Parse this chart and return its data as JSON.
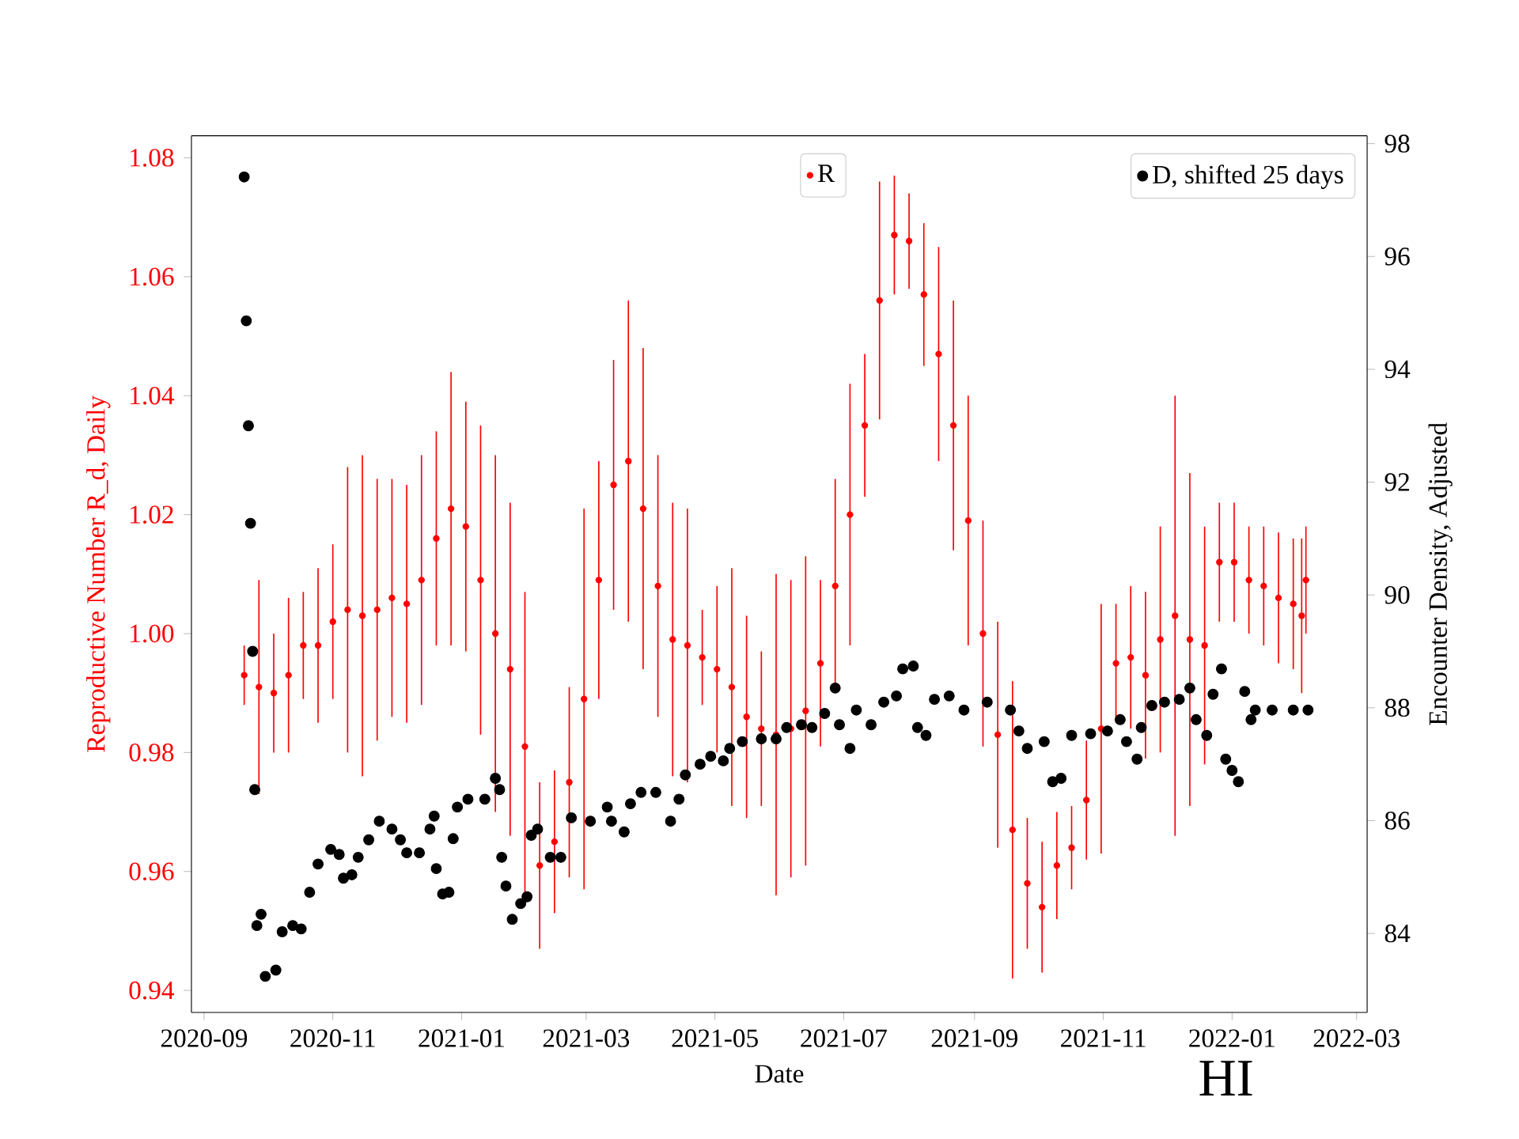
{
  "chart_data": {
    "type": "scatter",
    "xlabel": "Date",
    "ylabel": "Reproductive Number R_d, Daily",
    "y2label": "Encounter Density, Adjusted",
    "xlim": [
      "2020-08-26",
      "2022-03-06"
    ],
    "xticks": [
      "2020-09",
      "2020-11",
      "2021-01",
      "2021-03",
      "2021-05",
      "2021-07",
      "2021-09",
      "2021-11",
      "2022-01",
      "2022-03"
    ],
    "ylim": [
      0.9363,
      1.0837
    ],
    "yticks": [
      0.94,
      0.96,
      0.98,
      {
        "value": 1.0,
        "label": "1.00"
      },
      1.02,
      1.04,
      1.06,
      1.08
    ],
    "y2lim": [
      82.6,
      98.14
    ],
    "y2ticks": [
      84,
      86,
      88,
      90,
      92,
      94,
      96,
      98
    ],
    "marker": "circle",
    "legend": "top right",
    "annotations": [
      "HI"
    ],
    "series": [
      {
        "name": "R",
        "color": "#ff0000",
        "x": [
          "2020-09-20",
          "2020-09-27",
          "2020-10-04",
          "2020-10-11",
          "2020-10-18",
          "2020-10-25",
          "2020-11-01",
          "2020-11-08",
          "2020-11-15",
          "2020-11-22",
          "2020-11-29",
          "2020-12-06",
          "2020-12-13",
          "2020-12-20",
          "2020-12-27",
          "2021-01-03",
          "2021-01-10",
          "2021-01-17",
          "2021-01-24",
          "2021-01-31",
          "2021-02-07",
          "2021-02-14",
          "2021-02-21",
          "2021-02-28",
          "2021-03-07",
          "2021-03-14",
          "2021-03-21",
          "2021-03-28",
          "2021-04-04",
          "2021-04-11",
          "2021-04-18",
          "2021-04-25",
          "2021-05-02",
          "2021-05-09",
          "2021-05-16",
          "2021-05-23",
          "2021-05-30",
          "2021-06-06",
          "2021-06-13",
          "2021-06-20",
          "2021-06-27",
          "2021-07-04",
          "2021-07-11",
          "2021-07-18",
          "2021-07-25",
          "2021-08-01",
          "2021-08-08",
          "2021-08-15",
          "2021-08-22",
          "2021-08-29",
          "2021-09-05",
          "2021-09-12",
          "2021-09-19",
          "2021-09-26",
          "2021-10-03",
          "2021-10-10",
          "2021-10-17",
          "2021-10-24",
          "2021-10-31",
          "2021-11-07",
          "2021-11-14",
          "2021-11-21",
          "2021-11-28",
          "2021-12-05",
          "2021-12-12",
          "2021-12-19",
          "2021-12-26",
          "2022-01-02",
          "2022-01-09",
          "2022-01-16",
          "2022-01-23",
          "2022-01-30",
          "2022-02-03",
          "2022-02-05"
        ],
        "values": [
          0.993,
          0.991,
          0.99,
          0.993,
          0.998,
          0.998,
          1.002,
          1.004,
          1.003,
          1.004,
          1.006,
          1.005,
          1.009,
          1.016,
          1.021,
          1.018,
          1.009,
          1.0,
          0.994,
          0.981,
          0.961,
          0.965,
          0.975,
          0.989,
          1.009,
          1.025,
          1.029,
          1.021,
          1.008,
          0.999,
          0.998,
          0.996,
          0.994,
          0.991,
          0.986,
          0.984,
          0.983,
          0.984,
          0.987,
          0.995,
          1.008,
          1.02,
          1.035,
          1.056,
          1.067,
          1.066,
          1.057,
          1.047,
          1.035,
          1.019,
          1.0,
          0.983,
          0.967,
          0.958,
          0.954,
          0.961,
          0.964,
          0.972,
          0.984,
          0.995,
          0.996,
          0.993,
          0.999,
          1.003,
          0.999,
          0.998,
          1.012,
          1.012,
          1.009,
          1.008,
          1.006,
          1.005,
          1.003,
          1.009
        ],
        "errors": [
          0.005,
          0.018,
          0.01,
          0.013,
          0.009,
          0.013,
          0.013,
          0.024,
          0.027,
          0.022,
          0.02,
          0.02,
          0.021,
          0.018,
          0.023,
          0.021,
          0.026,
          0.03,
          0.028,
          0.026,
          0.014,
          0.012,
          0.016,
          0.032,
          0.02,
          0.021,
          0.027,
          0.027,
          0.022,
          0.023,
          0.023,
          0.008,
          0.014,
          0.02,
          0.017,
          0.013,
          0.027,
          0.025,
          0.026,
          0.014,
          0.018,
          0.022,
          0.012,
          0.02,
          0.01,
          0.008,
          0.012,
          0.018,
          0.021,
          0.021,
          0.019,
          0.019,
          0.025,
          0.011,
          0.011,
          0.009,
          0.007,
          0.01,
          0.021,
          0.01,
          0.012,
          0.014,
          0.019,
          0.037,
          0.028,
          0.02,
          0.01,
          0.01,
          0.009,
          0.01,
          0.011,
          0.011,
          0.013,
          0.009
        ]
      },
      {
        "name": "D, shifted 25 days",
        "color": "#000000",
        "axis": "y2",
        "x": [
          "2020-09-20",
          "2020-09-21",
          "2020-09-22",
          "2020-09-23",
          "2020-09-24",
          "2020-09-25",
          "2020-09-26",
          "2020-09-28",
          "2020-09-30",
          "2020-10-05",
          "2020-10-08",
          "2020-10-13",
          "2020-10-17",
          "2020-10-21",
          "2020-10-25",
          "2020-10-31",
          "2020-11-04",
          "2020-11-06",
          "2020-11-10",
          "2020-11-13",
          "2020-11-18",
          "2020-11-23",
          "2020-11-29",
          "2020-12-03",
          "2020-12-06",
          "2020-12-12",
          "2020-12-17",
          "2020-12-19",
          "2020-12-20",
          "2020-12-23",
          "2020-12-26",
          "2020-12-28",
          "2020-12-30",
          "2021-01-04",
          "2021-01-12",
          "2021-01-17",
          "2021-01-19",
          "2021-01-20",
          "2021-01-22",
          "2021-01-25",
          "2021-01-29",
          "2021-02-01",
          "2021-02-03",
          "2021-02-06",
          "2021-02-12",
          "2021-02-17",
          "2021-02-22",
          "2021-03-03",
          "2021-03-11",
          "2021-03-13",
          "2021-03-19",
          "2021-03-22",
          "2021-03-27",
          "2021-04-03",
          "2021-04-10",
          "2021-04-14",
          "2021-04-17",
          "2021-04-24",
          "2021-04-29",
          "2021-05-05",
          "2021-05-08",
          "2021-05-14",
          "2021-05-23",
          "2021-05-30",
          "2021-06-04",
          "2021-06-11",
          "2021-06-16",
          "2021-06-22",
          "2021-06-27",
          "2021-06-29",
          "2021-07-04",
          "2021-07-07",
          "2021-07-14",
          "2021-07-20",
          "2021-07-26",
          "2021-07-29",
          "2021-08-03",
          "2021-08-05",
          "2021-08-09",
          "2021-08-13",
          "2021-08-20",
          "2021-08-27",
          "2021-09-07",
          "2021-09-18",
          "2021-09-22",
          "2021-09-26",
          "2021-10-04",
          "2021-10-08",
          "2021-10-12",
          "2021-10-17",
          "2021-10-26",
          "2021-11-03",
          "2021-11-09",
          "2021-11-12",
          "2021-11-17",
          "2021-11-19",
          "2021-11-24",
          "2021-11-30",
          "2021-12-07",
          "2021-12-12",
          "2021-12-15",
          "2021-12-20",
          "2021-12-23",
          "2021-12-27",
          "2021-12-29",
          "2022-01-01",
          "2022-01-04",
          "2022-01-07",
          "2022-01-10",
          "2022-01-12",
          "2022-01-20",
          "2022-01-30",
          "2022-02-06"
        ],
        "values": [
          97.41,
          94.86,
          93.0,
          91.27,
          89.0,
          86.55,
          84.14,
          84.34,
          83.24,
          83.35,
          84.03,
          84.14,
          84.08,
          84.73,
          85.23,
          85.49,
          85.4,
          84.98,
          85.04,
          85.35,
          85.66,
          85.99,
          85.85,
          85.66,
          85.43,
          85.43,
          85.85,
          86.08,
          85.15,
          84.7,
          84.73,
          85.68,
          86.24,
          86.38,
          86.38,
          86.75,
          86.55,
          85.35,
          84.84,
          84.25,
          84.53,
          84.65,
          85.74,
          85.85,
          85.35,
          85.35,
          86.05,
          85.99,
          86.24,
          85.99,
          85.8,
          86.3,
          86.5,
          86.5,
          85.99,
          86.38,
          86.81,
          87.0,
          87.14,
          87.06,
          87.28,
          87.4,
          87.45,
          87.45,
          87.65,
          87.7,
          87.65,
          87.9,
          88.35,
          87.7,
          87.28,
          87.96,
          87.7,
          88.1,
          88.21,
          88.69,
          88.74,
          87.65,
          87.51,
          88.15,
          88.21,
          87.96,
          88.1,
          87.96,
          87.59,
          87.28,
          87.4,
          86.69,
          86.75,
          87.51,
          87.54,
          87.59,
          87.79,
          87.4,
          87.09,
          87.65,
          88.04,
          88.1,
          88.15,
          88.35,
          87.79,
          87.51,
          88.24,
          88.69,
          87.09,
          86.89,
          86.69,
          88.29,
          87.79,
          87.96,
          87.96,
          87.96,
          87.96
        ]
      }
    ]
  }
}
